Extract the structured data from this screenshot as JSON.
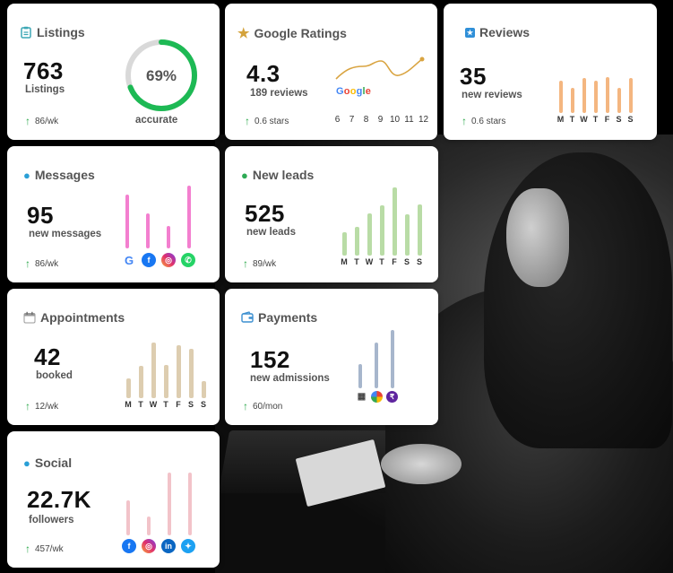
{
  "colors": {
    "ring": "#1db954",
    "ring_track": "#d9d9d9",
    "google_line": "#d9a441",
    "reviews_bars": "#f4b680",
    "messages_bars": "#f37fcf",
    "leads_bars": "#b9dca6",
    "appointments_bars": "#ddcdb0",
    "payments_bars": "#a7b6cc",
    "social_bars": "#f2c3c9",
    "trend_arrow": "#2aa84a"
  },
  "listings": {
    "title": "Listings",
    "value": "763",
    "label": "Listings",
    "trend": "86/wk",
    "ring_percent_label": "69%",
    "ring_fraction": 0.69,
    "ring_caption": "accurate"
  },
  "google": {
    "title": "Google Ratings",
    "value": "4.3",
    "label": "189 reviews",
    "trend": "0.6 stars",
    "logo_text": "Google",
    "x_labels": [
      "6",
      "7",
      "8",
      "9",
      "10",
      "11",
      "12"
    ]
  },
  "reviews": {
    "title": "Reviews",
    "value": "35",
    "label": "new reviews",
    "trend": "0.6 stars",
    "days": [
      "M",
      "T",
      "W",
      "T",
      "F",
      "S",
      "S"
    ],
    "bars": [
      0.72,
      0.55,
      0.78,
      0.72,
      0.8,
      0.55,
      0.78
    ]
  },
  "messages": {
    "title": "Messages",
    "value": "95",
    "label": "new messages",
    "trend": "86/wk",
    "bars": [
      0.85,
      0.55,
      0.35,
      1.0
    ],
    "icons": [
      "google-icon",
      "facebook-icon",
      "instagram-icon",
      "whatsapp-icon"
    ]
  },
  "leads": {
    "title": "New leads",
    "value": "525",
    "label": "new leads",
    "trend": "89/wk",
    "days": [
      "M",
      "T",
      "W",
      "T",
      "F",
      "S",
      "S"
    ],
    "bars": [
      0.34,
      0.42,
      0.62,
      0.74,
      1.0,
      0.6,
      0.75
    ]
  },
  "appointments": {
    "title": "Appointments",
    "value": "42",
    "label": "booked",
    "trend": "12/wk",
    "days": [
      "M",
      "T",
      "W",
      "T",
      "F",
      "S",
      "S"
    ],
    "bars": [
      0.35,
      0.58,
      1.0,
      0.6,
      0.95,
      0.88,
      0.3
    ]
  },
  "payments": {
    "title": "Payments",
    "value": "152",
    "label": "new admissions",
    "trend": "60/mon",
    "bars": [
      0.42,
      0.78,
      1.0
    ],
    "icons": [
      "qr-icon",
      "colorful-pay-icon",
      "phonepe-icon"
    ]
  },
  "social": {
    "title": "Social",
    "value": "22.7K",
    "label": "followers",
    "trend": "457/wk",
    "bars": [
      0.55,
      0.3,
      1.0,
      1.0
    ],
    "icons": [
      "facebook-icon",
      "instagram-icon",
      "linkedin-icon",
      "twitter-icon"
    ],
    "icon_text": {
      "linkedin": "in"
    }
  }
}
